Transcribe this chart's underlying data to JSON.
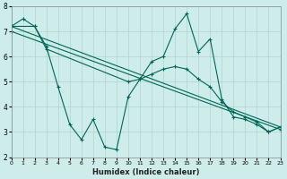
{
  "xlabel": "Humidex (Indice chaleur)",
  "background_color": "#cdecea",
  "grid_color": "#b0d4cc",
  "line_color": "#006655",
  "xlim": [
    0,
    23
  ],
  "ylim": [
    2,
    8
  ],
  "xticks": [
    0,
    1,
    2,
    3,
    4,
    5,
    6,
    7,
    8,
    9,
    10,
    11,
    12,
    13,
    14,
    15,
    16,
    17,
    18,
    19,
    20,
    21,
    22,
    23
  ],
  "yticks": [
    2,
    3,
    4,
    5,
    6,
    7,
    8
  ],
  "series": [
    {
      "x": [
        0,
        1,
        2,
        3,
        4,
        5,
        6,
        7,
        8,
        9,
        10,
        11,
        12,
        13,
        14,
        15,
        16,
        17,
        18,
        19,
        20,
        21,
        22,
        23
      ],
      "y": [
        7.2,
        7.5,
        7.2,
        6.4,
        4.8,
        3.3,
        2.7,
        3.5,
        2.4,
        2.3,
        4.4,
        5.1,
        5.8,
        6.0,
        7.1,
        7.7,
        6.2,
        6.7,
        4.3,
        3.6,
        3.5,
        3.3,
        3.0,
        3.2
      ]
    },
    {
      "x": [
        0,
        2,
        3,
        10,
        11,
        12,
        13,
        14,
        15,
        16,
        17,
        18,
        19,
        20,
        21,
        22,
        23
      ],
      "y": [
        7.2,
        7.2,
        6.3,
        5.0,
        5.1,
        5.3,
        5.5,
        5.6,
        5.5,
        5.1,
        4.8,
        4.2,
        3.8,
        3.6,
        3.4,
        3.0,
        3.2
      ]
    },
    {
      "x": [
        0,
        23
      ],
      "y": [
        7.2,
        3.2
      ]
    },
    {
      "x": [
        0,
        23
      ],
      "y": [
        7.2,
        3.2
      ]
    }
  ]
}
